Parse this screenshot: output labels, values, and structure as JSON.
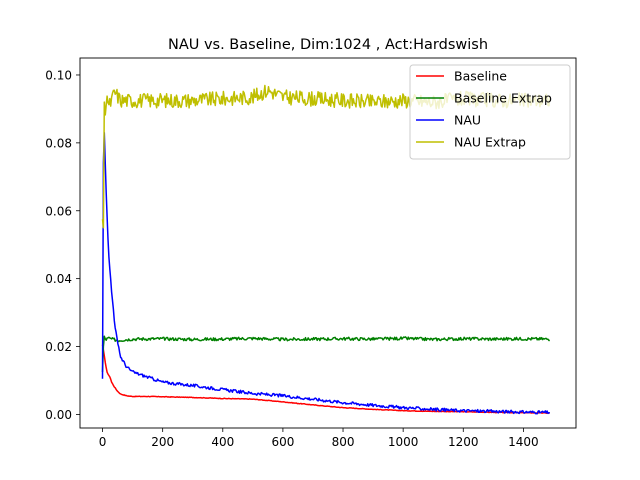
{
  "chart_data": {
    "type": "line",
    "title": "NAU vs. Baseline, Dim:1024 , Act:Hardswish",
    "xlabel": "",
    "ylabel": "",
    "xlim": [
      -75,
      1575
    ],
    "ylim": [
      -0.004,
      0.105
    ],
    "xticks": [
      0,
      200,
      400,
      600,
      800,
      1000,
      1200,
      1400
    ],
    "yticks": [
      0.0,
      0.02,
      0.04,
      0.06,
      0.08,
      0.1
    ],
    "xtick_labels": [
      "0",
      "200",
      "400",
      "600",
      "800",
      "1000",
      "1200",
      "1400"
    ],
    "ytick_labels": [
      "0.00",
      "0.02",
      "0.04",
      "0.06",
      "0.08",
      "0.10"
    ],
    "grid": false,
    "legend_position": "top-right",
    "series": [
      {
        "name": "Baseline",
        "color": "#ff0000",
        "x": [
          0,
          5,
          10,
          15,
          20,
          25,
          30,
          40,
          50,
          60,
          80,
          100,
          150,
          200,
          300,
          400,
          500,
          600,
          700,
          800,
          900,
          1000,
          1100,
          1200,
          1300,
          1400,
          1490
        ],
        "y": [
          0.0205,
          0.018,
          0.0145,
          0.0125,
          0.0115,
          0.011,
          0.0095,
          0.008,
          0.0068,
          0.006,
          0.0055,
          0.0053,
          0.0053,
          0.0052,
          0.005,
          0.0047,
          0.0045,
          0.0037,
          0.0028,
          0.002,
          0.0015,
          0.0011,
          0.0009,
          0.0008,
          0.0006,
          0.0005,
          0.0004
        ]
      },
      {
        "name": "Baseline Extrap",
        "color": "#008000",
        "x": [
          0,
          3,
          6,
          10,
          20,
          30,
          50,
          100,
          200,
          300,
          400,
          500,
          600,
          700,
          800,
          900,
          1000,
          1100,
          1200,
          1300,
          1400,
          1490
        ],
        "y": [
          0.0125,
          0.02,
          0.023,
          0.022,
          0.0225,
          0.0222,
          0.0218,
          0.0222,
          0.0223,
          0.0221,
          0.0222,
          0.0224,
          0.0221,
          0.0222,
          0.0223,
          0.0222,
          0.0224,
          0.0221,
          0.0223,
          0.0222,
          0.0223,
          0.0222
        ]
      },
      {
        "name": "NAU",
        "color": "#0000ff",
        "x": [
          0,
          3,
          6,
          10,
          15,
          20,
          25,
          30,
          35,
          40,
          50,
          60,
          80,
          100,
          150,
          200,
          250,
          300,
          400,
          500,
          600,
          700,
          800,
          900,
          1000,
          1100,
          1200,
          1300,
          1400,
          1490
        ],
        "y": [
          0.0105,
          0.074,
          0.083,
          0.071,
          0.058,
          0.048,
          0.042,
          0.036,
          0.032,
          0.027,
          0.021,
          0.017,
          0.014,
          0.0125,
          0.011,
          0.0095,
          0.009,
          0.0085,
          0.0073,
          0.0062,
          0.0055,
          0.0045,
          0.0035,
          0.0027,
          0.002,
          0.0015,
          0.0011,
          0.0009,
          0.0007,
          0.0006
        ]
      },
      {
        "name": "NAU Extrap",
        "color": "#bfbf00",
        "x": [
          0,
          3,
          6,
          10,
          15,
          20,
          30,
          40,
          60,
          100,
          200,
          300,
          400,
          500,
          550,
          600,
          700,
          800,
          900,
          1000,
          1100,
          1200,
          1300,
          1400,
          1490
        ],
        "y": [
          0.0575,
          0.055,
          0.092,
          0.085,
          0.095,
          0.0905,
          0.0925,
          0.095,
          0.0925,
          0.0925,
          0.0925,
          0.0925,
          0.093,
          0.0935,
          0.0955,
          0.0935,
          0.093,
          0.0925,
          0.092,
          0.0925,
          0.092,
          0.093,
          0.0925,
          0.0925,
          0.0925
        ]
      }
    ]
  }
}
